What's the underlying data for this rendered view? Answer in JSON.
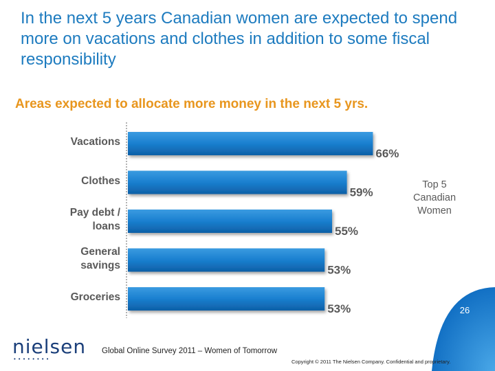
{
  "slide": {
    "title": "In the next 5 years Canadian women are expected to spend more on vacations and clothes in addition to some fiscal responsibility",
    "page_number": "26",
    "footer_survey": "Global Online Survey 2011 – Women of Tomorrow",
    "copyright": "Copyright © 2011 The Nielsen Company. Confidential and proprietary.",
    "logo_text": "nielsen",
    "colors": {
      "title": "#1d7bbf",
      "subtitle": "#e8961e",
      "bar": "#1a7fcf",
      "legend_bubble": "#ffffff"
    }
  },
  "chart_data": {
    "type": "bar",
    "orientation": "horizontal",
    "title": "Areas expected to allocate more money in the next 5 yrs.",
    "categories": [
      "Vacations",
      "Clothes",
      "Pay debt / loans",
      "General savings",
      "Groceries"
    ],
    "category_lines": [
      [
        "Vacations"
      ],
      [
        "Clothes"
      ],
      [
        "Pay debt /",
        "loans"
      ],
      [
        "General",
        "savings"
      ],
      [
        "Groceries"
      ]
    ],
    "values": [
      66,
      59,
      55,
      53,
      53
    ],
    "value_labels": [
      "66%",
      "59%",
      "55%",
      "53%",
      "53%"
    ],
    "series": [
      {
        "name": "Top 5 Canadian Women",
        "values": [
          66,
          59,
          55,
          53,
          53
        ]
      }
    ],
    "legend": {
      "text": "Top 5 Canadian Women",
      "placement": "right"
    },
    "xlim": [
      0,
      100
    ],
    "grid": false
  }
}
